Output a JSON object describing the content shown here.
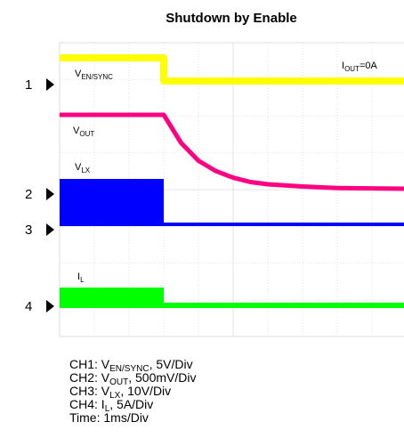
{
  "chart_data": {
    "type": "line",
    "title": "Shutdown by Enable",
    "grid": true,
    "x_unit": "ms",
    "xlim": [
      -3,
      7
    ],
    "annotation": {
      "main": "I",
      "sub": "OUT",
      "suffix": "=0A"
    },
    "channel_markers": [
      "1",
      "2",
      "3",
      "4"
    ],
    "series": [
      {
        "id": "ch1",
        "label_main": "V",
        "label_sub": "EN/SYNC",
        "color": "#ffff00",
        "points": [
          [
            -3,
            5
          ],
          [
            0,
            5
          ],
          [
            0,
            0
          ],
          [
            7,
            0
          ]
        ]
      },
      {
        "id": "ch2",
        "label_main": "V",
        "label_sub": "OUT",
        "color": "#ff0080",
        "points": [
          [
            -3,
            1
          ],
          [
            -0.1,
            1
          ],
          [
            0,
            1
          ],
          [
            0.5,
            0.62
          ],
          [
            1,
            0.38
          ],
          [
            1.5,
            0.24
          ],
          [
            2,
            0.15
          ],
          [
            2.5,
            0.09
          ],
          [
            3,
            0.06
          ],
          [
            4,
            0.03
          ],
          [
            5,
            0.01
          ],
          [
            6,
            0.005
          ],
          [
            7,
            0
          ]
        ]
      },
      {
        "id": "ch3",
        "label_main": "V",
        "label_sub": "LX",
        "color": "#0000ff",
        "points": [
          [
            -3,
            0
          ],
          [
            0,
            0
          ],
          [
            0,
            0
          ],
          [
            7,
            0
          ]
        ]
      },
      {
        "id": "ch4",
        "label_main": "I",
        "label_sub": "L",
        "color": "#00ff00",
        "points": [
          [
            -3,
            0
          ],
          [
            0,
            0
          ],
          [
            0,
            0
          ],
          [
            7,
            0
          ]
        ]
      }
    ],
    "captions": [
      {
        "prefix": "CH1: V",
        "sub": "EN/SYNC",
        "suffix": ", 5V/Div"
      },
      {
        "prefix": "CH2: V",
        "sub": "OUT",
        "suffix": ", 500mV/Div"
      },
      {
        "prefix": "CH3: V",
        "sub": "LX",
        "suffix": ", 10V/Div"
      },
      {
        "prefix": "CH4: I",
        "sub": "L",
        "suffix": ", 5A/Div"
      },
      {
        "prefix": "Time: 1ms/Div",
        "sub": "",
        "suffix": ""
      }
    ]
  }
}
